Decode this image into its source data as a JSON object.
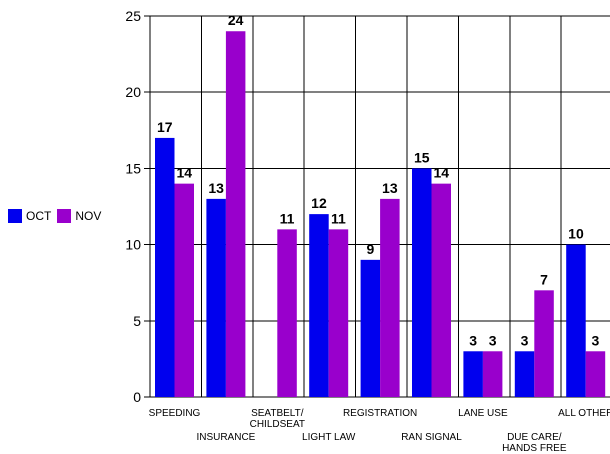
{
  "chart_data": {
    "type": "bar",
    "categories": [
      "SPEEDING",
      "INSURANCE",
      "SEATBELT/ CHILDSEAT",
      "LIGHT LAW",
      "REGISTRATION",
      "RAN SIGNAL",
      "LANE USE",
      "DUE CARE/ HANDS FREE",
      "ALL OTHER"
    ],
    "category_lines": [
      [
        "SPEEDING"
      ],
      [
        "INSURANCE"
      ],
      [
        "SEATBELT/",
        "CHILDSEAT"
      ],
      [
        "LIGHT LAW"
      ],
      [
        "REGISTRATION"
      ],
      [
        "RAN SIGNAL"
      ],
      [
        "LANE USE"
      ],
      [
        "DUE CARE/",
        "HANDS FREE"
      ],
      [
        "ALL OTHER"
      ]
    ],
    "series": [
      {
        "name": "OCT",
        "color": "#0000ee",
        "values": [
          17,
          13,
          0,
          12,
          9,
          15,
          3,
          3,
          10
        ],
        "labels": [
          "17",
          "13",
          "",
          "12",
          "9",
          "15",
          "3",
          "3",
          "10"
        ]
      },
      {
        "name": "NOV",
        "color": "#9900cc",
        "values": [
          14,
          24,
          11,
          11,
          13,
          14,
          3,
          7,
          3
        ],
        "labels": [
          "14",
          "24",
          "11",
          "11",
          "13",
          "14",
          "3",
          "7",
          "3"
        ]
      }
    ],
    "ylim": [
      0,
      25
    ],
    "yticks": [
      0,
      5,
      10,
      15,
      20,
      25
    ],
    "grid": true,
    "legend_position": "left"
  }
}
